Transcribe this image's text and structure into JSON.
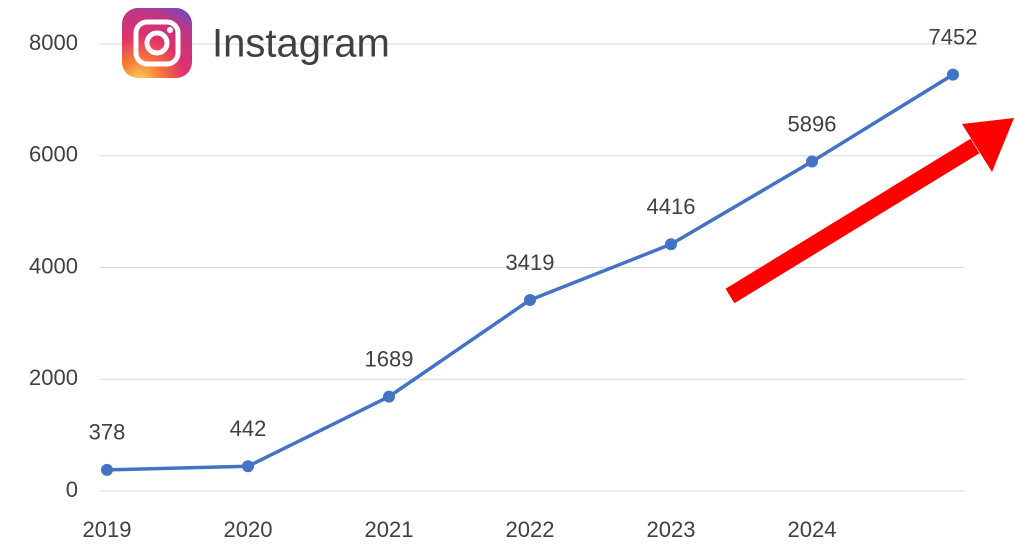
{
  "chart_data": {
    "type": "line",
    "title": "Instagram",
    "categories": [
      "2019",
      "2020",
      "2021",
      "2022",
      "2023",
      "2024",
      null
    ],
    "series": [
      {
        "name": "Instagram",
        "color": "#4472c4",
        "values": [
          378,
          442,
          1689,
          3419,
          4416,
          5896,
          7452
        ]
      }
    ],
    "ylim": [
      0,
      8000
    ],
    "yticks": [
      0,
      2000,
      4000,
      6000,
      8000
    ],
    "grid": true
  }
}
